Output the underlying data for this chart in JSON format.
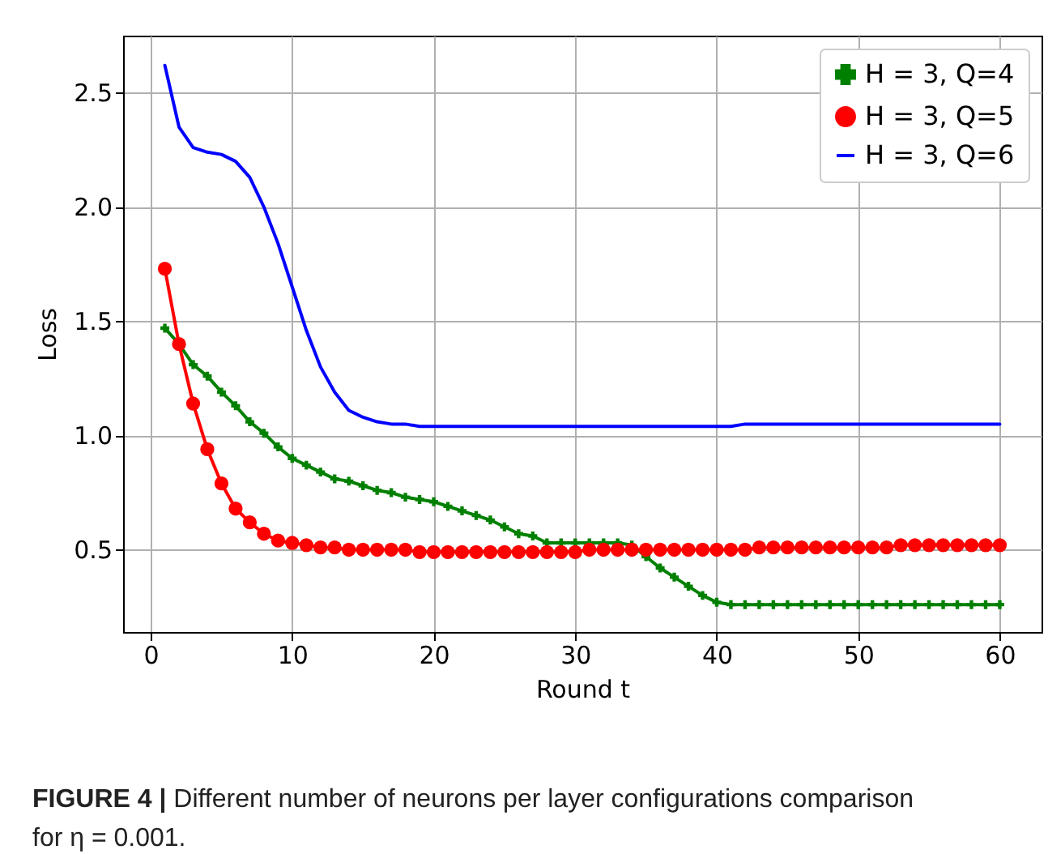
{
  "chart_data": {
    "type": "line",
    "xlabel": "Round t",
    "ylabel": "Loss",
    "x": [
      1,
      2,
      3,
      4,
      5,
      6,
      7,
      8,
      9,
      10,
      11,
      12,
      13,
      14,
      15,
      16,
      17,
      18,
      19,
      20,
      21,
      22,
      23,
      24,
      25,
      26,
      27,
      28,
      29,
      30,
      31,
      32,
      33,
      34,
      35,
      36,
      37,
      38,
      39,
      40,
      41,
      42,
      43,
      44,
      45,
      46,
      47,
      48,
      49,
      50,
      51,
      52,
      53,
      54,
      55,
      56,
      57,
      58,
      59,
      60
    ],
    "series": [
      {
        "name": "H = 3, Q=4",
        "color": "#008000",
        "marker": "cross",
        "values": [
          1.47,
          1.4,
          1.31,
          1.26,
          1.19,
          1.13,
          1.06,
          1.01,
          0.95,
          0.9,
          0.87,
          0.84,
          0.81,
          0.8,
          0.78,
          0.76,
          0.75,
          0.73,
          0.72,
          0.71,
          0.69,
          0.67,
          0.65,
          0.63,
          0.6,
          0.57,
          0.56,
          0.53,
          0.53,
          0.53,
          0.53,
          0.53,
          0.53,
          0.52,
          0.47,
          0.42,
          0.38,
          0.34,
          0.3,
          0.27,
          0.26,
          0.26,
          0.26,
          0.26,
          0.26,
          0.26,
          0.26,
          0.26,
          0.26,
          0.26,
          0.26,
          0.26,
          0.26,
          0.26,
          0.26,
          0.26,
          0.26,
          0.26,
          0.26,
          0.26
        ]
      },
      {
        "name": "H = 3, Q=5",
        "color": "#ff0000",
        "marker": "circle",
        "values": [
          1.73,
          1.4,
          1.14,
          0.94,
          0.79,
          0.68,
          0.62,
          0.57,
          0.54,
          0.53,
          0.52,
          0.51,
          0.51,
          0.5,
          0.5,
          0.5,
          0.5,
          0.5,
          0.49,
          0.49,
          0.49,
          0.49,
          0.49,
          0.49,
          0.49,
          0.49,
          0.49,
          0.49,
          0.49,
          0.49,
          0.5,
          0.5,
          0.5,
          0.5,
          0.5,
          0.5,
          0.5,
          0.5,
          0.5,
          0.5,
          0.5,
          0.5,
          0.51,
          0.51,
          0.51,
          0.51,
          0.51,
          0.51,
          0.51,
          0.51,
          0.51,
          0.51,
          0.52,
          0.52,
          0.52,
          0.52,
          0.52,
          0.52,
          0.52,
          0.52
        ]
      },
      {
        "name": "H = 3, Q=6",
        "color": "#0000ff",
        "marker": "none",
        "values": [
          2.62,
          2.35,
          2.26,
          2.24,
          2.23,
          2.2,
          2.13,
          2.0,
          1.84,
          1.65,
          1.46,
          1.3,
          1.19,
          1.11,
          1.08,
          1.06,
          1.05,
          1.05,
          1.04,
          1.04,
          1.04,
          1.04,
          1.04,
          1.04,
          1.04,
          1.04,
          1.04,
          1.04,
          1.04,
          1.04,
          1.04,
          1.04,
          1.04,
          1.04,
          1.04,
          1.04,
          1.04,
          1.04,
          1.04,
          1.04,
          1.04,
          1.05,
          1.05,
          1.05,
          1.05,
          1.05,
          1.05,
          1.05,
          1.05,
          1.05,
          1.05,
          1.05,
          1.05,
          1.05,
          1.05,
          1.05,
          1.05,
          1.05,
          1.05,
          1.05
        ]
      }
    ],
    "xlim": [
      -1.95,
      62.95
    ],
    "xticks": [
      0,
      10,
      20,
      30,
      40,
      50,
      60
    ],
    "ylim": [
      0.14,
      2.75
    ],
    "yticks": [
      0.5,
      {
        "value": 1.0,
        "label": "1.0"
      },
      1.5,
      {
        "value": 2.0,
        "label": "2.0"
      },
      2.5
    ],
    "grid": true,
    "legend": "top right",
    "line_style": "solid",
    "annotations": [
      "FIGURE 4 | Different number of neurons per layer configurations comparison for η = 0.001."
    ]
  }
}
